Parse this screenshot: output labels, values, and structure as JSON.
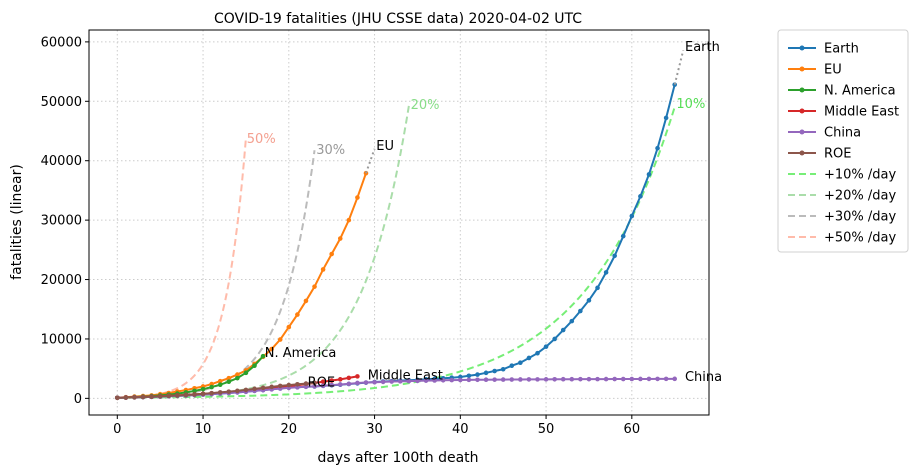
{
  "chart_data": {
    "type": "line",
    "title": "COVID-19 fatalities (JHU CSSE data) 2020-04-02 UTC",
    "xlabel": "days after 100th death",
    "ylabel": "fatalities (linear)",
    "xlim": [
      -3.3,
      69
    ],
    "ylim": [
      -2800,
      62000
    ],
    "xticks": [
      0,
      10,
      20,
      30,
      40,
      50,
      60
    ],
    "yticks": [
      0,
      10000,
      20000,
      30000,
      40000,
      50000,
      60000
    ],
    "grid": true,
    "legend_position": "outside-right",
    "series": [
      {
        "name": "Earth",
        "color": "#1f77b4",
        "style": "solid-markers",
        "x": [
          0,
          1,
          2,
          3,
          4,
          5,
          6,
          7,
          8,
          9,
          10,
          11,
          12,
          13,
          14,
          15,
          16,
          17,
          18,
          19,
          20,
          21,
          22,
          23,
          24,
          25,
          26,
          27,
          28,
          29,
          30,
          31,
          32,
          33,
          34,
          35,
          36,
          37,
          38,
          39,
          40,
          41,
          42,
          43,
          44,
          45,
          46,
          47,
          48,
          49,
          50,
          51,
          52,
          53,
          54,
          55,
          56,
          57,
          58,
          59,
          60,
          61,
          62,
          63,
          64,
          65
        ],
        "y": [
          100,
          130,
          170,
          210,
          260,
          300,
          360,
          420,
          490,
          560,
          640,
          720,
          810,
          900,
          1000,
          1110,
          1260,
          1380,
          1530,
          1670,
          1800,
          1870,
          1950,
          2000,
          2100,
          2200,
          2300,
          2420,
          2520,
          2640,
          2750,
          2830,
          2900,
          2980,
          3050,
          3120,
          3210,
          3290,
          3380,
          3480,
          3600,
          3800,
          4000,
          4300,
          4600,
          4900,
          5500,
          6000,
          6800,
          7600,
          8700,
          10000,
          11500,
          13000,
          14700,
          16500,
          18600,
          21200,
          24000,
          27300,
          30700,
          34000,
          37700,
          42100,
          47200,
          52800
        ]
      },
      {
        "name": "EU",
        "color": "#ff7f0e",
        "style": "solid-markers",
        "x": [
          0,
          1,
          2,
          3,
          4,
          5,
          6,
          7,
          8,
          9,
          10,
          11,
          12,
          13,
          14,
          15,
          16,
          17,
          18,
          19,
          20,
          21,
          22,
          23,
          24,
          25,
          26,
          27,
          28,
          29
        ],
        "y": [
          100,
          200,
          300,
          400,
          500,
          700,
          900,
          1150,
          1400,
          1700,
          2000,
          2400,
          2900,
          3400,
          4000,
          4700,
          5800,
          7000,
          8300,
          9900,
          12000,
          14100,
          16400,
          18800,
          21700,
          24300,
          26900,
          30000,
          33800,
          37900
        ]
      },
      {
        "name": "N. America",
        "color": "#2ca02c",
        "style": "solid-markers",
        "x": [
          0,
          1,
          2,
          3,
          4,
          5,
          6,
          7,
          8,
          9,
          10,
          11,
          12,
          13,
          14,
          15,
          16,
          17
        ],
        "y": [
          100,
          150,
          220,
          300,
          380,
          500,
          640,
          800,
          1000,
          1250,
          1550,
          1900,
          2300,
          2800,
          3400,
          4300,
          5500,
          7100
        ]
      },
      {
        "name": "Middle East",
        "color": "#d62728",
        "style": "solid-markers",
        "x": [
          0,
          1,
          2,
          3,
          4,
          5,
          6,
          7,
          8,
          9,
          10,
          11,
          12,
          13,
          14,
          15,
          16,
          17,
          18,
          19,
          20,
          21,
          22,
          23,
          24,
          25,
          26,
          27,
          28
        ],
        "y": [
          100,
          150,
          200,
          250,
          300,
          360,
          430,
          500,
          580,
          670,
          770,
          860,
          960,
          1070,
          1200,
          1320,
          1450,
          1570,
          1700,
          1850,
          2000,
          2200,
          2400,
          2600,
          2800,
          3000,
          3200,
          3450,
          3700
        ]
      },
      {
        "name": "China",
        "color": "#9467bd",
        "style": "solid-markers",
        "x": [
          0,
          1,
          2,
          3,
          4,
          5,
          6,
          7,
          8,
          9,
          10,
          11,
          12,
          13,
          14,
          15,
          16,
          17,
          18,
          19,
          20,
          21,
          22,
          23,
          24,
          25,
          26,
          27,
          28,
          29,
          30,
          31,
          32,
          33,
          34,
          35,
          36,
          37,
          38,
          39,
          40,
          41,
          42,
          43,
          44,
          45,
          46,
          47,
          48,
          49,
          50,
          51,
          52,
          53,
          54,
          55,
          56,
          57,
          58,
          59,
          60,
          61,
          62,
          63,
          64,
          65
        ],
        "y": [
          100,
          130,
          170,
          210,
          260,
          300,
          360,
          420,
          490,
          560,
          640,
          720,
          810,
          900,
          1000,
          1110,
          1260,
          1380,
          1520,
          1660,
          1770,
          1860,
          1950,
          2010,
          2120,
          2240,
          2340,
          2440,
          2590,
          2670,
          2710,
          2770,
          2830,
          2860,
          2910,
          2940,
          2980,
          3010,
          3040,
          3070,
          3090,
          3110,
          3130,
          3140,
          3150,
          3160,
          3170,
          3180,
          3190,
          3195,
          3200,
          3210,
          3220,
          3225,
          3230,
          3235,
          3240,
          3245,
          3250,
          3255,
          3260,
          3265,
          3270,
          3275,
          3280,
          3290
        ]
      },
      {
        "name": "ROE",
        "color": "#8c564b",
        "style": "solid-markers",
        "x": [
          0,
          1,
          2,
          3,
          4,
          5,
          6,
          7,
          8,
          9,
          10,
          11,
          12,
          13,
          14,
          15,
          16,
          17,
          18,
          19,
          20,
          21,
          22,
          23
        ],
        "y": [
          100,
          130,
          170,
          220,
          280,
          340,
          410,
          490,
          570,
          660,
          760,
          880,
          1000,
          1130,
          1270,
          1420,
          1600,
          1770,
          1940,
          2100,
          2240,
          2370,
          2490,
          2600
        ]
      },
      {
        "name": "+10% /day",
        "color": "#77ee77",
        "style": "dashed",
        "growth": 1.1,
        "x_end": 65
      },
      {
        "name": "+20% /day",
        "color": "#aaddaa",
        "style": "dashed",
        "growth": 1.2,
        "x_end": 34
      },
      {
        "name": "+30% /day",
        "color": "#bbbbbb",
        "style": "dashed",
        "growth": 1.3,
        "x_end": 23
      },
      {
        "name": "+50% /day",
        "color": "#ffbbaa",
        "style": "dashed",
        "growth": 1.5,
        "x_end": 15
      }
    ],
    "annotations": [
      {
        "text": "50%",
        "x": 15.1,
        "y": 43000,
        "color": "#f4a090"
      },
      {
        "text": "30%",
        "x": 23.2,
        "y": 41100,
        "color": "#999999"
      },
      {
        "text": "20%",
        "x": 34.2,
        "y": 48700,
        "color": "#88dd88"
      },
      {
        "text": "10%",
        "x": 65.2,
        "y": 48900,
        "color": "#55dd55"
      },
      {
        "text": "Earth",
        "x": 66.2,
        "y": 58500,
        "color": "#000000"
      },
      {
        "text": "EU",
        "x": 30.2,
        "y": 41800,
        "color": "#000000"
      },
      {
        "text": "N. America",
        "x": 17.2,
        "y": 7000,
        "color": "#000000"
      },
      {
        "text": "Middle East",
        "x": 29.2,
        "y": 3200,
        "color": "#000000"
      },
      {
        "text": "ROE",
        "x": 22.2,
        "y": 2000,
        "color": "#000000"
      },
      {
        "text": "China",
        "x": 66.2,
        "y": 2900,
        "color": "#000000"
      }
    ]
  }
}
